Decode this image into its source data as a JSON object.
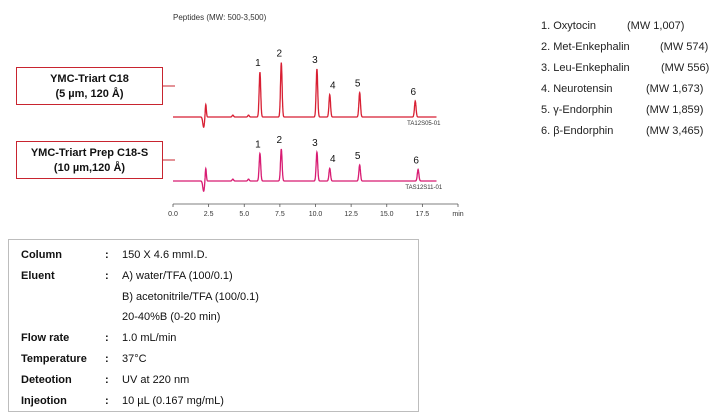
{
  "chart_data": {
    "type": "line",
    "title": "Peptides (MW: 500-3,500)",
    "xlabel": "min",
    "xlim": [
      0,
      20
    ],
    "x_ticks": [
      "0.0",
      "2.5",
      "5.0",
      "7.5",
      "10.0",
      "12.5",
      "15.0",
      "17.5",
      "min"
    ],
    "x_tick_values": [
      0,
      2.5,
      5,
      7.5,
      10,
      12.5,
      15,
      17.5,
      20
    ],
    "series": [
      {
        "name": "YMC-Triart C18",
        "column_line1": "YMC-Triart C18",
        "column_line2": "(5 µm, 120 Å)",
        "code": "TA12S05-01",
        "color": "#d81f33",
        "void_time": 2.3,
        "peaks": [
          {
            "label": "1",
            "time": 6.1,
            "height": 0.7
          },
          {
            "label": "2",
            "time": 7.6,
            "height": 0.85
          },
          {
            "label": "3",
            "time": 10.1,
            "height": 0.75
          },
          {
            "label": "4",
            "time": 11.0,
            "height": 0.35
          },
          {
            "label": "5",
            "time": 13.1,
            "height": 0.38
          },
          {
            "label": "6",
            "time": 17.0,
            "height": 0.25
          }
        ]
      },
      {
        "name": "YMC-Triart Prep C18-S",
        "column_line1": "YMC-Triart Prep C18-S",
        "column_line2": "(10 µm,120 Å)",
        "code": "TAS12S11-01",
        "color": "#d81b72",
        "void_time": 2.3,
        "peaks": [
          {
            "label": "1",
            "time": 6.1,
            "height": 0.43
          },
          {
            "label": "2",
            "time": 7.6,
            "height": 0.5
          },
          {
            "label": "3",
            "time": 10.1,
            "height": 0.45
          },
          {
            "label": "4",
            "time": 11.0,
            "height": 0.2
          },
          {
            "label": "5",
            "time": 13.1,
            "height": 0.25
          },
          {
            "label": "6",
            "time": 17.2,
            "height": 0.18
          }
        ]
      }
    ]
  },
  "legend": [
    {
      "name": "1. Oxytocin",
      "mw": "(MW 1,007)"
    },
    {
      "name": "2. Met-Enkephalin",
      "mw": "(MW 574)"
    },
    {
      "name": "3. Leu-Enkephalin",
      "mw": "(MW 556)"
    },
    {
      "name": "4. Neurotensin",
      "mw": "(MW 1,673)"
    },
    {
      "name": "5. γ-Endorphin",
      "mw": "(MW 1,859)"
    },
    {
      "name": "6. β-Endorphin",
      "mw": "(MW 3,465)"
    }
  ],
  "conditions": [
    {
      "label": "Column",
      "colon": ":",
      "value": "150 X 4.6 mmI.D."
    },
    {
      "label": "Eluent",
      "colon": ":",
      "value": "A) water/TFA (100/0.1)"
    },
    {
      "label": "",
      "colon": "",
      "value": "B) acetonitrile/TFA (100/0.1)"
    },
    {
      "label": "",
      "colon": "",
      "value": "20-40%B (0-20 min)"
    },
    {
      "label": "Flow rate",
      "colon": ":",
      "value": "1.0 mL/min"
    },
    {
      "label": "Temperature",
      "colon": ":",
      "value": "37°C"
    },
    {
      "label": "Deteotion",
      "colon": ":",
      "value": "UV at 220 nm"
    },
    {
      "label": "Injeotion",
      "colon": ":",
      "value": "10 µL (0.167 mg/mL)"
    }
  ]
}
